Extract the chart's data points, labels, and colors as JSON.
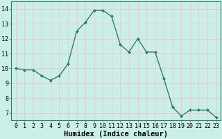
{
  "x": [
    0,
    1,
    2,
    3,
    4,
    5,
    6,
    7,
    8,
    9,
    10,
    11,
    12,
    13,
    14,
    15,
    16,
    17,
    18,
    19,
    20,
    21,
    22,
    23
  ],
  "y": [
    10.0,
    9.9,
    9.9,
    9.5,
    9.2,
    9.5,
    10.3,
    12.5,
    13.1,
    13.9,
    13.9,
    13.5,
    11.6,
    11.1,
    12.0,
    11.1,
    11.1,
    9.3,
    7.4,
    6.8,
    7.2,
    7.2,
    7.2,
    6.7
  ],
  "line_color": "#2e7d6e",
  "marker": "D",
  "marker_size": 2.0,
  "xlabel": "Humidex (Indice chaleur)",
  "xlim": [
    -0.5,
    23.5
  ],
  "ylim": [
    6.5,
    14.5
  ],
  "yticks": [
    7,
    8,
    9,
    10,
    11,
    12,
    13,
    14
  ],
  "xticks": [
    0,
    1,
    2,
    3,
    4,
    5,
    6,
    7,
    8,
    9,
    10,
    11,
    12,
    13,
    14,
    15,
    16,
    17,
    18,
    19,
    20,
    21,
    22,
    23
  ],
  "bg_color": "#cceee8",
  "grid_color": "#e8c8c8",
  "tick_label_fontsize": 6.0,
  "xlabel_fontsize": 7.5,
  "linewidth": 1.0
}
